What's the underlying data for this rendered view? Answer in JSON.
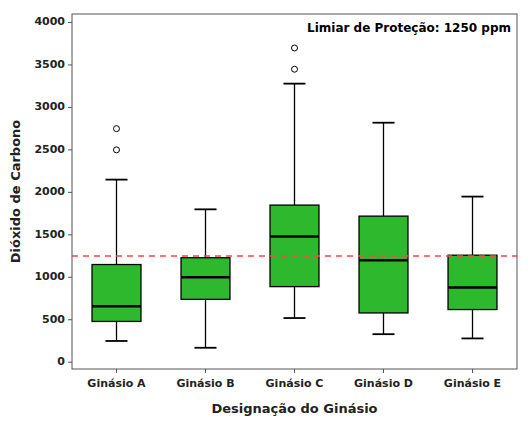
{
  "chart_data": {
    "type": "box",
    "xlabel": "Designação do Ginásio",
    "ylabel": "Dióxido de Carbono",
    "categories": [
      "Ginásio A",
      "Ginásio B",
      "Ginásio C",
      "Ginásio D",
      "Ginásio E"
    ],
    "boxes": [
      {
        "q1": 480,
        "median": 660,
        "q3": 1150,
        "whislo": 250,
        "whishi": 2150,
        "fliers": [
          2500,
          2750
        ]
      },
      {
        "q1": 740,
        "median": 1000,
        "q3": 1230,
        "whislo": 170,
        "whishi": 1800,
        "fliers": []
      },
      {
        "q1": 890,
        "median": 1480,
        "q3": 1850,
        "whislo": 520,
        "whishi": 3280,
        "fliers": [
          3450,
          3700
        ]
      },
      {
        "q1": 580,
        "median": 1200,
        "q3": 1720,
        "whislo": 330,
        "whishi": 2820,
        "fliers": []
      },
      {
        "q1": 620,
        "median": 880,
        "q3": 1260,
        "whislo": 280,
        "whishi": 1950,
        "fliers": []
      }
    ],
    "color": "#2db82d",
    "threshold": {
      "value": 1250,
      "label": "Limiar de Proteção: 1250 ppm",
      "color": "#ff4444"
    },
    "ylim": [
      -80,
      4100
    ],
    "yticks": [
      0,
      500,
      1000,
      1500,
      2000,
      2500,
      3000,
      3500,
      4000
    ],
    "grid": false
  }
}
